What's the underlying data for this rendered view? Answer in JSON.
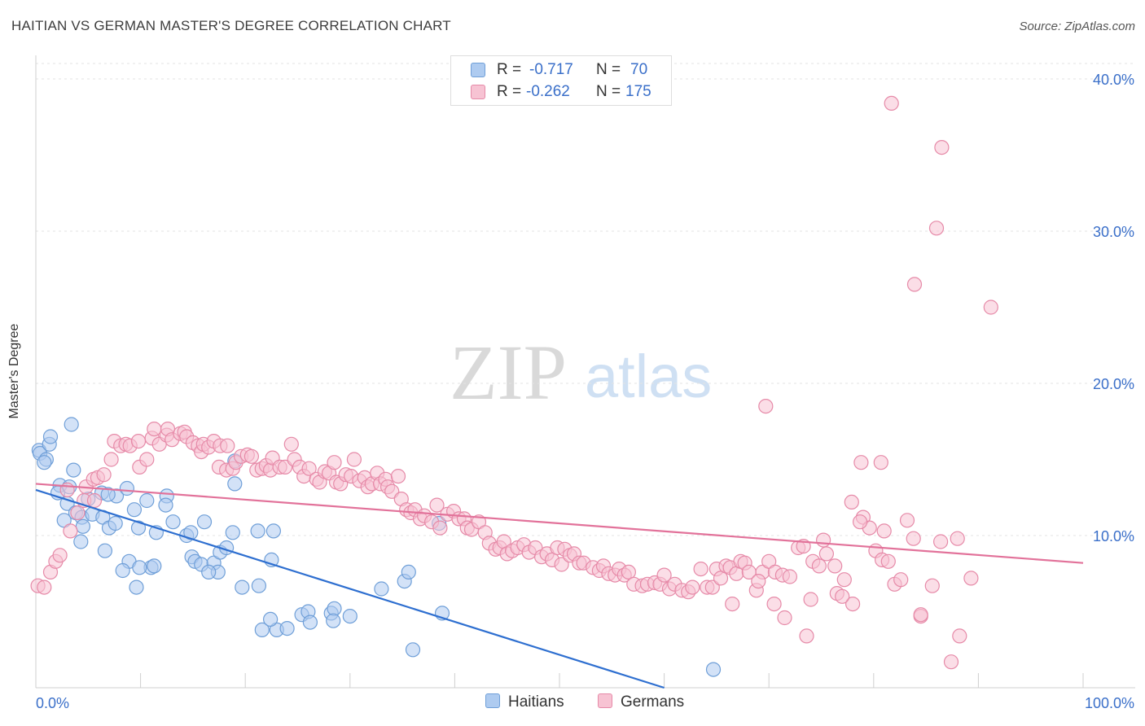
{
  "header": {
    "title": "HAITIAN VS GERMAN MASTER'S DEGREE CORRELATION CHART",
    "source": "Source: ZipAtlas.com"
  },
  "watermark": {
    "zip": "ZIP",
    "atlas": "atlas"
  },
  "legend_top": {
    "rows": [
      {
        "r_label": "R =",
        "r_value": "-0.717",
        "n_label": "N =",
        "n_value": "70",
        "color": "#aecbf0",
        "border": "#6f9fd8"
      },
      {
        "r_label": "R =",
        "r_value": "-0.262",
        "n_label": "N =",
        "n_value": "175",
        "color": "#f7c3d3",
        "border": "#e68aa8"
      }
    ]
  },
  "legend_bottom": [
    {
      "label": "Haitians",
      "color": "#aecbf0",
      "border": "#6f9fd8"
    },
    {
      "label": "Germans",
      "color": "#f7c3d3",
      "border": "#e68aa8"
    }
  ],
  "chart_data": {
    "type": "scatter",
    "title": "HAITIAN VS GERMAN MASTER'S DEGREE CORRELATION CHART",
    "xlabel": "",
    "ylabel": "Master's Degree",
    "xlim": [
      0,
      100
    ],
    "ylim": [
      0,
      40
    ],
    "x_tick_labels": [
      "0.0%",
      "100.0%"
    ],
    "y_ticks": [
      10,
      20,
      30,
      40
    ],
    "y_tick_labels": [
      "10.0%",
      "20.0%",
      "30.0%",
      "40.0%"
    ],
    "grid": true,
    "series": [
      {
        "name": "Haitians",
        "color": "#6f9fd8",
        "fill": "#aecbf0",
        "line_color": "#2e6fd0",
        "trend": {
          "x": [
            0,
            60
          ],
          "y": [
            13.0,
            0.0
          ]
        },
        "points": [
          [
            0.3,
            15.6
          ],
          [
            0.4,
            15.4
          ],
          [
            1.0,
            15.0
          ],
          [
            1.3,
            16.0
          ],
          [
            0.8,
            14.8
          ],
          [
            1.4,
            16.5
          ],
          [
            3.4,
            17.3
          ],
          [
            2.3,
            13.3
          ],
          [
            2.1,
            12.8
          ],
          [
            3.2,
            13.2
          ],
          [
            3.6,
            14.3
          ],
          [
            2.7,
            11.0
          ],
          [
            3.0,
            12.1
          ],
          [
            3.8,
            11.5
          ],
          [
            4.4,
            11.2
          ],
          [
            4.5,
            10.6
          ],
          [
            5.0,
            12.4
          ],
          [
            5.4,
            11.4
          ],
          [
            6.4,
            11.2
          ],
          [
            6.3,
            12.8
          ],
          [
            7.7,
            12.6
          ],
          [
            6.9,
            12.7
          ],
          [
            8.7,
            13.1
          ],
          [
            7.0,
            10.5
          ],
          [
            7.6,
            10.8
          ],
          [
            4.3,
            9.6
          ],
          [
            6.6,
            9.0
          ],
          [
            9.4,
            11.7
          ],
          [
            9.8,
            10.5
          ],
          [
            10.6,
            12.3
          ],
          [
            11.5,
            10.2
          ],
          [
            12.5,
            12.6
          ],
          [
            12.4,
            12.0
          ],
          [
            13.1,
            10.9
          ],
          [
            14.4,
            10.0
          ],
          [
            14.8,
            10.2
          ],
          [
            14.9,
            8.6
          ],
          [
            15.2,
            8.3
          ],
          [
            16.1,
            10.9
          ],
          [
            11.0,
            7.9
          ],
          [
            8.9,
            8.3
          ],
          [
            8.3,
            7.7
          ],
          [
            9.9,
            7.9
          ],
          [
            11.3,
            8.0
          ],
          [
            15.8,
            8.1
          ],
          [
            17.0,
            8.2
          ],
          [
            17.6,
            8.9
          ],
          [
            17.4,
            7.6
          ],
          [
            18.2,
            9.2
          ],
          [
            18.8,
            10.2
          ],
          [
            19.0,
            14.9
          ],
          [
            19.0,
            13.4
          ],
          [
            21.2,
            10.3
          ],
          [
            22.5,
            8.4
          ],
          [
            22.7,
            10.3
          ],
          [
            19.7,
            6.6
          ],
          [
            21.3,
            6.7
          ],
          [
            9.6,
            6.6
          ],
          [
            16.5,
            7.6
          ],
          [
            25.4,
            4.8
          ],
          [
            26.0,
            5.0
          ],
          [
            28.2,
            4.9
          ],
          [
            28.5,
            5.2
          ],
          [
            21.6,
            3.8
          ],
          [
            23.0,
            3.8
          ],
          [
            22.4,
            4.5
          ],
          [
            24.0,
            3.9
          ],
          [
            26.2,
            4.3
          ],
          [
            28.4,
            4.4
          ],
          [
            30.0,
            4.7
          ],
          [
            33.0,
            6.5
          ],
          [
            35.2,
            7.0
          ],
          [
            35.6,
            7.6
          ],
          [
            38.8,
            4.9
          ],
          [
            36.0,
            2.5
          ],
          [
            38.5,
            10.8
          ],
          [
            64.7,
            1.2
          ]
        ]
      },
      {
        "name": "Germans",
        "color": "#e68aa8",
        "fill": "#f7c3d3",
        "line_color": "#e2729a",
        "trend": {
          "x": [
            0,
            100
          ],
          "y": [
            13.4,
            8.2
          ]
        },
        "points": [
          [
            0.2,
            6.7
          ],
          [
            0.8,
            6.6
          ],
          [
            1.4,
            7.6
          ],
          [
            1.9,
            8.3
          ],
          [
            2.3,
            8.7
          ],
          [
            3.0,
            13.0
          ],
          [
            3.3,
            10.3
          ],
          [
            4.0,
            11.5
          ],
          [
            4.6,
            12.3
          ],
          [
            4.8,
            13.2
          ],
          [
            5.6,
            12.3
          ],
          [
            5.5,
            13.7
          ],
          [
            5.9,
            13.8
          ],
          [
            6.5,
            14.0
          ],
          [
            7.2,
            15.0
          ],
          [
            7.5,
            16.2
          ],
          [
            8.1,
            15.9
          ],
          [
            8.6,
            16.0
          ],
          [
            9.0,
            15.9
          ],
          [
            9.8,
            16.2
          ],
          [
            9.9,
            14.5
          ],
          [
            10.6,
            15.0
          ],
          [
            11.1,
            16.4
          ],
          [
            11.3,
            17.0
          ],
          [
            11.8,
            16.0
          ],
          [
            12.5,
            16.6
          ],
          [
            12.6,
            17.0
          ],
          [
            13.0,
            16.3
          ],
          [
            13.8,
            16.7
          ],
          [
            14.2,
            16.8
          ],
          [
            14.4,
            16.5
          ],
          [
            15.0,
            16.1
          ],
          [
            15.5,
            15.9
          ],
          [
            15.8,
            15.5
          ],
          [
            16.0,
            16.0
          ],
          [
            16.5,
            15.8
          ],
          [
            17.0,
            16.2
          ],
          [
            17.6,
            15.9
          ],
          [
            17.5,
            14.5
          ],
          [
            18.2,
            14.3
          ],
          [
            18.3,
            15.9
          ],
          [
            18.8,
            14.4
          ],
          [
            19.1,
            14.8
          ],
          [
            19.6,
            15.2
          ],
          [
            20.2,
            15.3
          ],
          [
            20.6,
            15.2
          ],
          [
            21.1,
            14.3
          ],
          [
            21.6,
            14.4
          ],
          [
            22.0,
            14.6
          ],
          [
            22.4,
            14.3
          ],
          [
            22.6,
            15.1
          ],
          [
            23.3,
            14.5
          ],
          [
            23.8,
            14.5
          ],
          [
            24.4,
            16.0
          ],
          [
            24.7,
            15.0
          ],
          [
            25.2,
            14.5
          ],
          [
            25.6,
            13.9
          ],
          [
            26.1,
            14.4
          ],
          [
            26.8,
            13.7
          ],
          [
            27.1,
            13.5
          ],
          [
            27.6,
            14.2
          ],
          [
            28.0,
            14.1
          ],
          [
            28.5,
            14.8
          ],
          [
            28.7,
            13.5
          ],
          [
            29.1,
            13.4
          ],
          [
            29.6,
            14.0
          ],
          [
            30.1,
            13.9
          ],
          [
            30.4,
            15.0
          ],
          [
            30.9,
            13.6
          ],
          [
            31.4,
            13.8
          ],
          [
            31.7,
            13.2
          ],
          [
            32.1,
            13.4
          ],
          [
            32.6,
            14.1
          ],
          [
            32.9,
            13.4
          ],
          [
            33.4,
            13.7
          ],
          [
            33.6,
            13.2
          ],
          [
            34.0,
            12.9
          ],
          [
            34.6,
            13.9
          ],
          [
            34.9,
            12.4
          ],
          [
            35.4,
            11.7
          ],
          [
            35.8,
            11.5
          ],
          [
            36.2,
            11.7
          ],
          [
            36.7,
            11.1
          ],
          [
            37.1,
            11.3
          ],
          [
            37.8,
            10.9
          ],
          [
            38.3,
            12.0
          ],
          [
            38.6,
            10.5
          ],
          [
            39.3,
            11.4
          ],
          [
            39.9,
            11.6
          ],
          [
            40.4,
            11.1
          ],
          [
            40.9,
            11.1
          ],
          [
            41.2,
            10.5
          ],
          [
            41.6,
            10.4
          ],
          [
            42.3,
            10.9
          ],
          [
            42.9,
            10.2
          ],
          [
            43.3,
            9.5
          ],
          [
            43.9,
            9.1
          ],
          [
            44.3,
            9.2
          ],
          [
            44.7,
            9.6
          ],
          [
            45.0,
            8.8
          ],
          [
            45.5,
            9.0
          ],
          [
            46.0,
            9.2
          ],
          [
            46.6,
            9.4
          ],
          [
            47.1,
            8.9
          ],
          [
            47.7,
            9.2
          ],
          [
            48.3,
            8.6
          ],
          [
            48.8,
            8.8
          ],
          [
            49.3,
            8.4
          ],
          [
            49.8,
            9.2
          ],
          [
            50.2,
            8.1
          ],
          [
            50.5,
            9.1
          ],
          [
            51.0,
            8.7
          ],
          [
            51.4,
            8.8
          ],
          [
            51.9,
            8.2
          ],
          [
            52.3,
            8.2
          ],
          [
            53.2,
            7.9
          ],
          [
            53.8,
            7.7
          ],
          [
            54.2,
            8.0
          ],
          [
            54.7,
            7.5
          ],
          [
            55.3,
            7.4
          ],
          [
            55.7,
            7.8
          ],
          [
            56.2,
            7.4
          ],
          [
            56.6,
            7.6
          ],
          [
            57.1,
            6.8
          ],
          [
            57.9,
            6.7
          ],
          [
            58.4,
            6.8
          ],
          [
            59.1,
            6.9
          ],
          [
            59.6,
            6.8
          ],
          [
            60.0,
            7.4
          ],
          [
            60.5,
            6.5
          ],
          [
            61.0,
            6.8
          ],
          [
            61.7,
            6.4
          ],
          [
            62.3,
            6.3
          ],
          [
            62.7,
            6.6
          ],
          [
            63.5,
            7.8
          ],
          [
            64.1,
            6.6
          ],
          [
            64.6,
            6.6
          ],
          [
            65.0,
            7.8
          ],
          [
            65.4,
            7.2
          ],
          [
            65.9,
            8.0
          ],
          [
            66.3,
            7.9
          ],
          [
            66.9,
            7.5
          ],
          [
            67.3,
            8.3
          ],
          [
            67.7,
            8.2
          ],
          [
            68.1,
            7.6
          ],
          [
            68.8,
            6.4
          ],
          [
            69.4,
            7.6
          ],
          [
            70.0,
            8.3
          ],
          [
            70.6,
            7.6
          ],
          [
            71.3,
            7.4
          ],
          [
            72.0,
            7.3
          ],
          [
            72.8,
            9.2
          ],
          [
            73.3,
            9.3
          ],
          [
            74.2,
            8.3
          ],
          [
            74.8,
            8.0
          ],
          [
            75.5,
            8.8
          ],
          [
            76.3,
            8.0
          ],
          [
            77.2,
            7.1
          ],
          [
            78.0,
            5.5
          ],
          [
            79.0,
            11.2
          ],
          [
            79.6,
            10.5
          ],
          [
            80.2,
            9.0
          ],
          [
            80.8,
            8.4
          ],
          [
            81.4,
            8.3
          ],
          [
            82.0,
            6.8
          ],
          [
            82.6,
            7.1
          ],
          [
            83.2,
            11.0
          ],
          [
            83.8,
            9.8
          ],
          [
            84.5,
            4.7
          ],
          [
            85.6,
            6.7
          ],
          [
            86.4,
            9.6
          ],
          [
            87.4,
            1.7
          ],
          [
            88.0,
            9.8
          ],
          [
            89.3,
            7.2
          ],
          [
            69.7,
            18.5
          ],
          [
            77.9,
            12.2
          ],
          [
            78.7,
            10.9
          ],
          [
            75.2,
            9.7
          ],
          [
            74.0,
            5.8
          ],
          [
            76.5,
            6.2
          ],
          [
            70.5,
            5.5
          ],
          [
            73.6,
            3.4
          ],
          [
            81.7,
            38.4
          ],
          [
            86.5,
            35.5
          ],
          [
            86.0,
            30.2
          ],
          [
            83.9,
            26.5
          ],
          [
            91.2,
            25.0
          ],
          [
            78.8,
            14.8
          ],
          [
            80.7,
            14.8
          ],
          [
            81.0,
            10.3
          ],
          [
            84.5,
            4.8
          ],
          [
            88.2,
            3.4
          ],
          [
            77.0,
            6.0
          ],
          [
            71.5,
            4.6
          ],
          [
            69.0,
            7.0
          ],
          [
            66.5,
            5.5
          ]
        ]
      }
    ]
  }
}
